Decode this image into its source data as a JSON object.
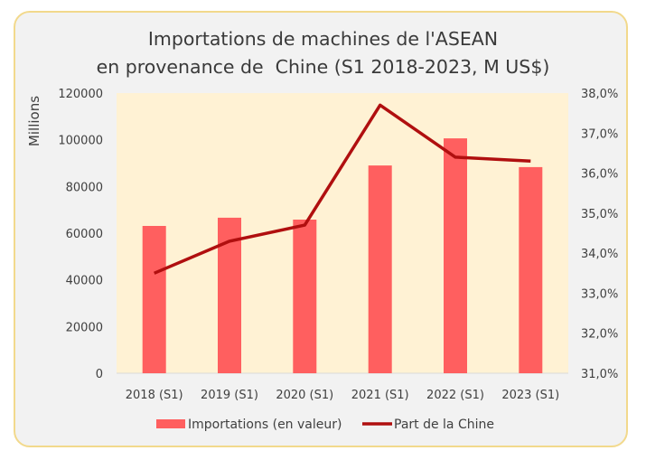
{
  "chart_data": {
    "type": "bar+line",
    "title": "Importations de machines de l'ASEAN\nen provenance de  Chine (S1 2018-2023, M US$)",
    "title_lines": [
      "Importations de machines de l'ASEAN",
      "en provenance de  Chine (S1 2018-2023, M US$)"
    ],
    "categories": [
      "2018 (S1)",
      "2019 (S1)",
      "2020 (S1)",
      "2021 (S1)",
      "2022 (S1)",
      "2023 (S1)"
    ],
    "series": [
      {
        "name": "Importations (en valeur)",
        "type": "bar",
        "axis": "left",
        "color": "#ff5f5f",
        "values": [
          63100,
          66600,
          65800,
          89000,
          100600,
          88300
        ]
      },
      {
        "name": "Part de la Chine",
        "type": "line",
        "axis": "right",
        "color": "#b00f0f",
        "values": [
          33.5,
          34.3,
          34.7,
          37.7,
          36.4,
          36.3
        ]
      }
    ],
    "ylabel": "Millions",
    "ylim": [
      0,
      120000
    ],
    "yticks": [
      "0",
      "20000",
      "40000",
      "60000",
      "80000",
      "100000",
      "120000"
    ],
    "y2lim": [
      31,
      38
    ],
    "y2ticks": [
      "31,0%",
      "32,0%",
      "33,0%",
      "34,0%",
      "35,0%",
      "36,0%",
      "37,0%",
      "38,0%"
    ],
    "grid": false,
    "legend_position": "bottom",
    "plot_background": "#fff2d4"
  },
  "legend": {
    "bar_label": "Importations (en valeur)",
    "line_label": "Part de la Chine"
  },
  "colors": {
    "bar": "#ff5f5f",
    "line": "#b00f0f",
    "plot_bg": "#fff2d4",
    "frame_bg": "#f2f2f2",
    "frame_border": "#f2d98c"
  }
}
